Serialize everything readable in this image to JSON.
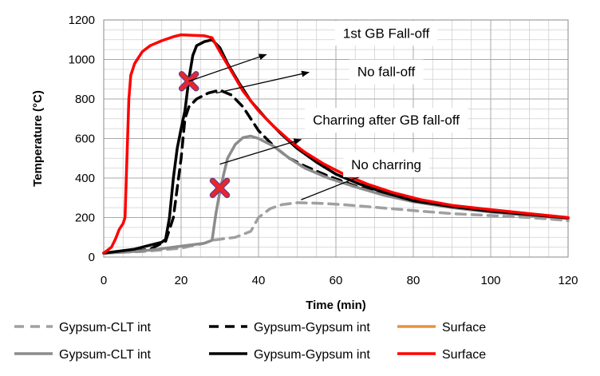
{
  "chart_data": {
    "type": "line",
    "title": "",
    "xlabel": "Time (min)",
    "ylabel": "Temperature (°C)",
    "xlim": [
      0,
      120
    ],
    "ylim": [
      0,
      1200
    ],
    "x_ticks": [
      0,
      20,
      40,
      60,
      80,
      100,
      120
    ],
    "y_ticks": [
      0,
      200,
      400,
      600,
      800,
      1000,
      1200
    ],
    "grid": true,
    "legend_position": "bottom",
    "series": [
      {
        "name": "Gypsum-CLT int",
        "style": "dashed",
        "color": "#a0a0a0",
        "points": [
          [
            0,
            22
          ],
          [
            10,
            28
          ],
          [
            20,
            45
          ],
          [
            26,
            70
          ],
          [
            28,
            85
          ],
          [
            34,
            100
          ],
          [
            38,
            130
          ],
          [
            40,
            200
          ],
          [
            43,
            245
          ],
          [
            46,
            265
          ],
          [
            50,
            275
          ],
          [
            56,
            272
          ],
          [
            62,
            265
          ],
          [
            70,
            252
          ],
          [
            80,
            235
          ],
          [
            90,
            220
          ],
          [
            100,
            210
          ],
          [
            110,
            200
          ],
          [
            118,
            188
          ],
          [
            120,
            183
          ]
        ]
      },
      {
        "name": "Gypsum-Gypsum int",
        "style": "dashed",
        "color": "#000000",
        "points": [
          [
            0,
            20
          ],
          [
            8,
            30
          ],
          [
            12,
            40
          ],
          [
            16,
            80
          ],
          [
            18,
            200
          ],
          [
            20,
            500
          ],
          [
            21,
            700
          ],
          [
            22,
            760
          ],
          [
            24,
            800
          ],
          [
            27,
            830
          ],
          [
            30,
            845
          ],
          [
            33,
            820
          ],
          [
            36,
            760
          ],
          [
            40,
            640
          ],
          [
            44,
            560
          ],
          [
            48,
            500
          ],
          [
            52,
            460
          ],
          [
            58,
            410
          ],
          [
            65,
            360
          ],
          [
            72,
            320
          ],
          [
            80,
            285
          ],
          [
            90,
            255
          ],
          [
            100,
            235
          ],
          [
            110,
            215
          ],
          [
            120,
            198
          ]
        ]
      },
      {
        "name": "Surface",
        "style": "solid",
        "color": "#e8923c",
        "points": []
      },
      {
        "name": "Gypsum-CLT int",
        "style": "solid",
        "color": "#8c8c8c",
        "points": [
          [
            0,
            20
          ],
          [
            6,
            25
          ],
          [
            12,
            35
          ],
          [
            18,
            50
          ],
          [
            22,
            60
          ],
          [
            26,
            70
          ],
          [
            28,
            85
          ],
          [
            29,
            220
          ],
          [
            30,
            330
          ],
          [
            31,
            420
          ],
          [
            32,
            500
          ],
          [
            34,
            570
          ],
          [
            36,
            605
          ],
          [
            38,
            612
          ],
          [
            40,
            600
          ],
          [
            44,
            560
          ],
          [
            48,
            500
          ],
          [
            52,
            450
          ],
          [
            58,
            400
          ],
          [
            65,
            355
          ],
          [
            72,
            315
          ],
          [
            80,
            280
          ],
          [
            90,
            250
          ],
          [
            100,
            228
          ],
          [
            110,
            210
          ],
          [
            120,
            195
          ]
        ]
      },
      {
        "name": "Gypsum-Gypsum int",
        "style": "solid",
        "color": "#000000",
        "points": [
          [
            0,
            20
          ],
          [
            8,
            40
          ],
          [
            12,
            60
          ],
          [
            15,
            75
          ],
          [
            16,
            90
          ],
          [
            17,
            200
          ],
          [
            18,
            400
          ],
          [
            19,
            550
          ],
          [
            20,
            650
          ],
          [
            21,
            740
          ],
          [
            22,
            900
          ],
          [
            23,
            1020
          ],
          [
            24,
            1070
          ],
          [
            26,
            1090
          ],
          [
            28,
            1100
          ],
          [
            30,
            1060
          ],
          [
            32,
            980
          ],
          [
            35,
            880
          ],
          [
            38,
            790
          ],
          [
            42,
            700
          ],
          [
            46,
            620
          ],
          [
            50,
            550
          ],
          [
            55,
            480
          ],
          [
            60,
            420
          ],
          [
            66,
            370
          ],
          [
            72,
            330
          ],
          [
            80,
            285
          ],
          [
            90,
            255
          ],
          [
            100,
            232
          ],
          [
            110,
            215
          ],
          [
            120,
            198
          ]
        ]
      },
      {
        "name": "Surface",
        "style": "solid",
        "color": "#ff0000",
        "points": [
          [
            0,
            20
          ],
          [
            2,
            50
          ],
          [
            3,
            90
          ],
          [
            4,
            140
          ],
          [
            5,
            170
          ],
          [
            5.5,
            200
          ],
          [
            6,
            500
          ],
          [
            6.5,
            800
          ],
          [
            7,
            920
          ],
          [
            8,
            980
          ],
          [
            10,
            1040
          ],
          [
            12,
            1070
          ],
          [
            15,
            1095
          ],
          [
            18,
            1115
          ],
          [
            20,
            1125
          ],
          [
            23,
            1122
          ],
          [
            26,
            1120
          ],
          [
            28,
            1110
          ],
          [
            30,
            1040
          ],
          [
            33,
            940
          ],
          [
            36,
            840
          ],
          [
            40,
            740
          ],
          [
            44,
            660
          ],
          [
            48,
            590
          ],
          [
            52,
            530
          ],
          [
            57,
            470
          ],
          [
            62,
            420
          ],
          [
            68,
            370
          ],
          [
            75,
            325
          ],
          [
            82,
            290
          ],
          [
            90,
            262
          ],
          [
            100,
            240
          ],
          [
            110,
            220
          ],
          [
            120,
            200
          ]
        ]
      }
    ],
    "markers": [
      {
        "name": "fall-off-cross",
        "x": 22,
        "y": 890,
        "color": "#e8262a"
      },
      {
        "name": "charring-cross",
        "x": 30,
        "y": 350,
        "color": "#e8262a"
      }
    ],
    "annotations": [
      {
        "text": "1st GB Fall-off",
        "text_x": 73,
        "text_y": 1110,
        "arrow_from": [
          22,
          890
        ],
        "arrow_to": [
          42,
          1025
        ]
      },
      {
        "text": "No fall-off",
        "text_x": 73,
        "text_y": 915,
        "arrow_from": [
          29,
          830
        ],
        "arrow_to": [
          53,
          935
        ]
      },
      {
        "text": "Charring after GB fall-off",
        "text_x": 73,
        "text_y": 670,
        "arrow_from": [
          30,
          470
        ],
        "arrow_to": [
          51,
          595
        ]
      },
      {
        "text": "No charring",
        "text_x": 73,
        "text_y": 445,
        "arrow_from": [
          51,
          290
        ],
        "arrow_to": [
          71,
          445
        ]
      }
    ]
  }
}
